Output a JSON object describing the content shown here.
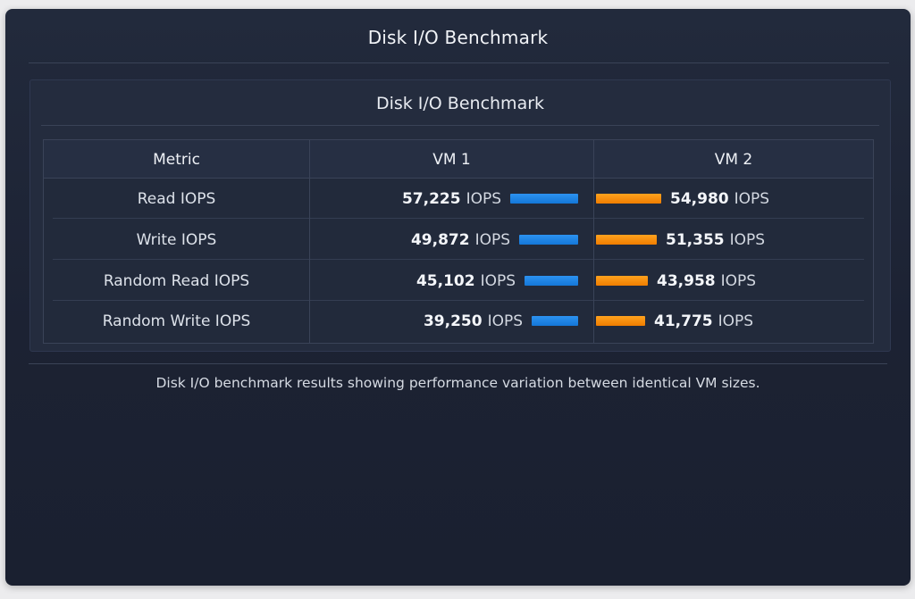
{
  "window": {
    "title": "Disk I/O Benchmark"
  },
  "panel": {
    "title": "Disk I/O Benchmark"
  },
  "table": {
    "headers": [
      "Metric",
      "VM 1",
      "VM 2"
    ],
    "unit": "IOPS",
    "rows": [
      {
        "metric": "Read IOPS",
        "vm1": "57,225",
        "vm2": "54,980"
      },
      {
        "metric": "Write IOPS",
        "vm1": "49,872",
        "vm2": "51,355"
      },
      {
        "metric": "Random Read IOPS",
        "vm1": "45,102",
        "vm2": "43,958"
      },
      {
        "metric": "Random Write IOPS",
        "vm1": "39,250",
        "vm2": "41,775"
      }
    ]
  },
  "chart_data": {
    "type": "table",
    "categories": [
      "Read IOPS",
      "Write IOPS",
      "Random Read IOPS",
      "Random Write IOPS"
    ],
    "series": [
      {
        "name": "VM 1",
        "values": [
          57225,
          49872,
          45102,
          39250
        ]
      },
      {
        "name": "VM 2",
        "values": [
          54980,
          51355,
          43958,
          41775
        ]
      }
    ],
    "colors": {
      "VM 1": "#1a84e4",
      "VM 2": "#f98e0c"
    }
  },
  "caption": "Disk I/O benchmark results showing performance variation between identical VM sizes."
}
